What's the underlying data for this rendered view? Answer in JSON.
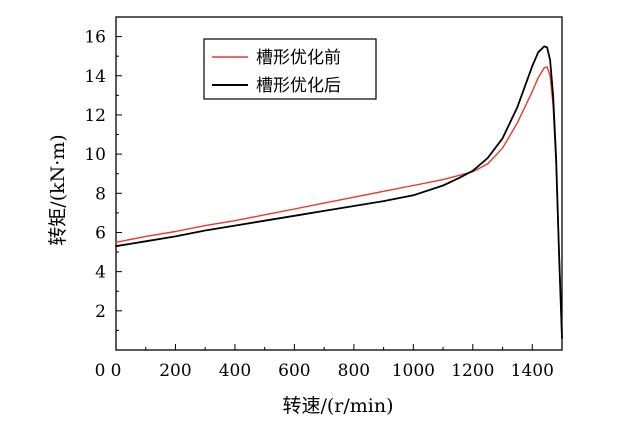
{
  "chart_data": {
    "type": "line",
    "xlabel": "转速/(r/min)",
    "ylabel": "转矩/(kN·m)",
    "xlim": [
      0,
      1500
    ],
    "ylim": [
      0,
      17
    ],
    "xticks": [
      0,
      200,
      400,
      600,
      800,
      1000,
      1200,
      1400
    ],
    "yticks": [
      2,
      4,
      6,
      8,
      10,
      12,
      14,
      16
    ],
    "grid": false,
    "legend_position": "top-left",
    "series": [
      {
        "name": "槽形优化前",
        "color": "#e8392b",
        "x": [
          0,
          100,
          200,
          300,
          400,
          500,
          600,
          700,
          800,
          900,
          1000,
          1100,
          1150,
          1200,
          1250,
          1300,
          1350,
          1400,
          1420,
          1440,
          1450,
          1460,
          1470,
          1480,
          1490,
          1500
        ],
        "y": [
          5.5,
          5.8,
          6.05,
          6.35,
          6.6,
          6.9,
          7.2,
          7.5,
          7.8,
          8.1,
          8.4,
          8.7,
          8.9,
          9.1,
          9.5,
          10.3,
          11.6,
          13.2,
          13.9,
          14.4,
          14.45,
          14.0,
          12.5,
          9.5,
          5.0,
          0.6
        ]
      },
      {
        "name": "槽形优化后",
        "color": "#000000",
        "x": [
          0,
          100,
          200,
          300,
          400,
          500,
          600,
          700,
          800,
          900,
          1000,
          1100,
          1150,
          1200,
          1250,
          1300,
          1350,
          1400,
          1420,
          1440,
          1450,
          1460,
          1470,
          1480,
          1490,
          1500
        ],
        "y": [
          5.3,
          5.55,
          5.8,
          6.1,
          6.35,
          6.6,
          6.85,
          7.1,
          7.35,
          7.6,
          7.9,
          8.4,
          8.75,
          9.15,
          9.8,
          10.8,
          12.4,
          14.5,
          15.2,
          15.5,
          15.45,
          14.8,
          13.0,
          9.8,
          5.0,
          0.6
        ]
      }
    ]
  }
}
